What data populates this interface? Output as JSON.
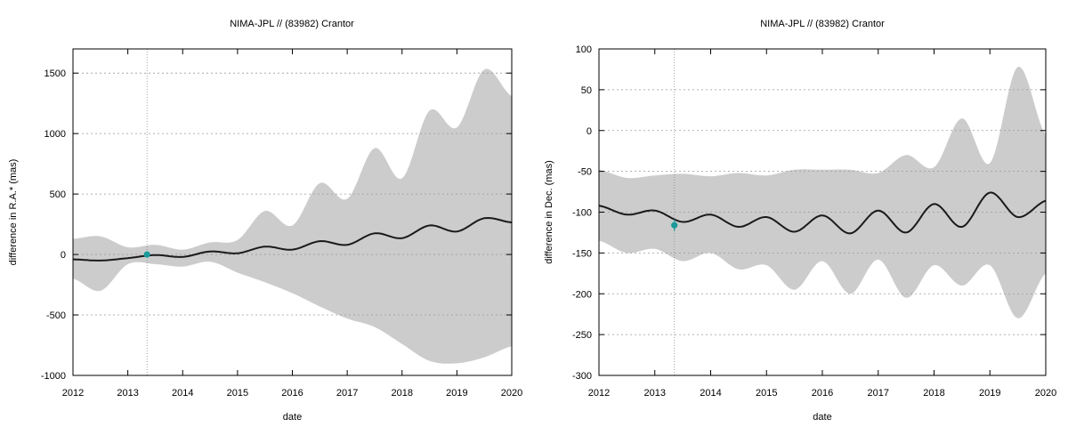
{
  "chart_data": [
    {
      "type": "area",
      "title": "NIMA-JPL // (83982) Crantor",
      "xlabel": "date",
      "ylabel": "difference in R.A.* (mas)",
      "xlim": [
        2012,
        2020
      ],
      "ylim": [
        -1000,
        1700
      ],
      "xticks": [
        2012,
        2013,
        2014,
        2015,
        2016,
        2017,
        2018,
        2019,
        2020
      ],
      "yticks": [
        -1000,
        -500,
        0,
        500,
        1000,
        1500
      ],
      "grid": "horizontal dotted",
      "vertical_marker_x": 2013.35,
      "colors": {
        "band": "#cccccc",
        "line": "#1a1a1a",
        "point": "#1a9a9a"
      },
      "series": [
        {
          "kind": "line",
          "x": [
            2012.0,
            2012.5,
            2013.0,
            2013.5,
            2014.0,
            2014.5,
            2015.0,
            2015.5,
            2016.0,
            2016.5,
            2017.0,
            2017.5,
            2018.0,
            2018.5,
            2019.0,
            2019.5,
            2020.0
          ],
          "y": [
            -40,
            -50,
            -30,
            -5,
            -20,
            25,
            10,
            65,
            40,
            110,
            80,
            175,
            135,
            240,
            190,
            300,
            265
          ]
        },
        {
          "kind": "band",
          "x": [
            2012.0,
            2012.5,
            2013.0,
            2013.5,
            2014.0,
            2014.5,
            2015.0,
            2015.5,
            2016.0,
            2016.5,
            2017.0,
            2017.5,
            2018.0,
            2018.5,
            2019.0,
            2019.5,
            2020.0
          ],
          "upper": [
            130,
            150,
            60,
            80,
            40,
            100,
            120,
            360,
            240,
            590,
            460,
            880,
            630,
            1190,
            1050,
            1530,
            1310
          ],
          "lower": [
            -200,
            -300,
            -80,
            -80,
            -100,
            -60,
            -150,
            -230,
            -320,
            -430,
            -530,
            -600,
            -740,
            -880,
            -900,
            -850,
            -760
          ]
        },
        {
          "kind": "point",
          "x": [
            2013.35
          ],
          "y": [
            0
          ],
          "yerr": [
            10
          ]
        }
      ]
    },
    {
      "type": "area",
      "title": "NIMA-JPL // (83982) Crantor",
      "xlabel": "date",
      "ylabel": "difference in Dec. (mas)",
      "xlim": [
        2012,
        2020
      ],
      "ylim": [
        -300,
        100
      ],
      "xticks": [
        2012,
        2013,
        2014,
        2015,
        2016,
        2017,
        2018,
        2019,
        2020
      ],
      "yticks": [
        -300,
        -250,
        -200,
        -150,
        -100,
        -50,
        0,
        50,
        100
      ],
      "grid": "horizontal dotted",
      "vertical_marker_x": 2013.35,
      "colors": {
        "band": "#cccccc",
        "line": "#1a1a1a",
        "point": "#1a9a9a"
      },
      "series": [
        {
          "kind": "line",
          "x": [
            2012.0,
            2012.5,
            2013.0,
            2013.5,
            2014.0,
            2014.5,
            2015.0,
            2015.5,
            2016.0,
            2016.5,
            2017.0,
            2017.5,
            2018.0,
            2018.5,
            2019.0,
            2019.5,
            2020.0
          ],
          "y": [
            -92,
            -103,
            -98,
            -112,
            -103,
            -118,
            -106,
            -124,
            -104,
            -126,
            -98,
            -125,
            -90,
            -118,
            -76,
            -106,
            -86
          ]
        },
        {
          "kind": "band",
          "x": [
            2012.0,
            2012.5,
            2013.0,
            2013.5,
            2014.0,
            2014.5,
            2015.0,
            2015.5,
            2016.0,
            2016.5,
            2017.0,
            2017.5,
            2018.0,
            2018.5,
            2019.0,
            2019.5,
            2020.0
          ],
          "upper": [
            -48,
            -58,
            -55,
            -53,
            -56,
            -52,
            -55,
            -48,
            -48,
            -48,
            -52,
            -30,
            -45,
            15,
            -40,
            78,
            -5
          ],
          "lower": [
            -135,
            -150,
            -145,
            -160,
            -150,
            -170,
            -165,
            -195,
            -160,
            -200,
            -158,
            -205,
            -165,
            -190,
            -165,
            -230,
            -175
          ]
        },
        {
          "kind": "point",
          "x": [
            2013.35
          ],
          "y": [
            -116
          ],
          "yerr": [
            7
          ]
        }
      ]
    }
  ]
}
